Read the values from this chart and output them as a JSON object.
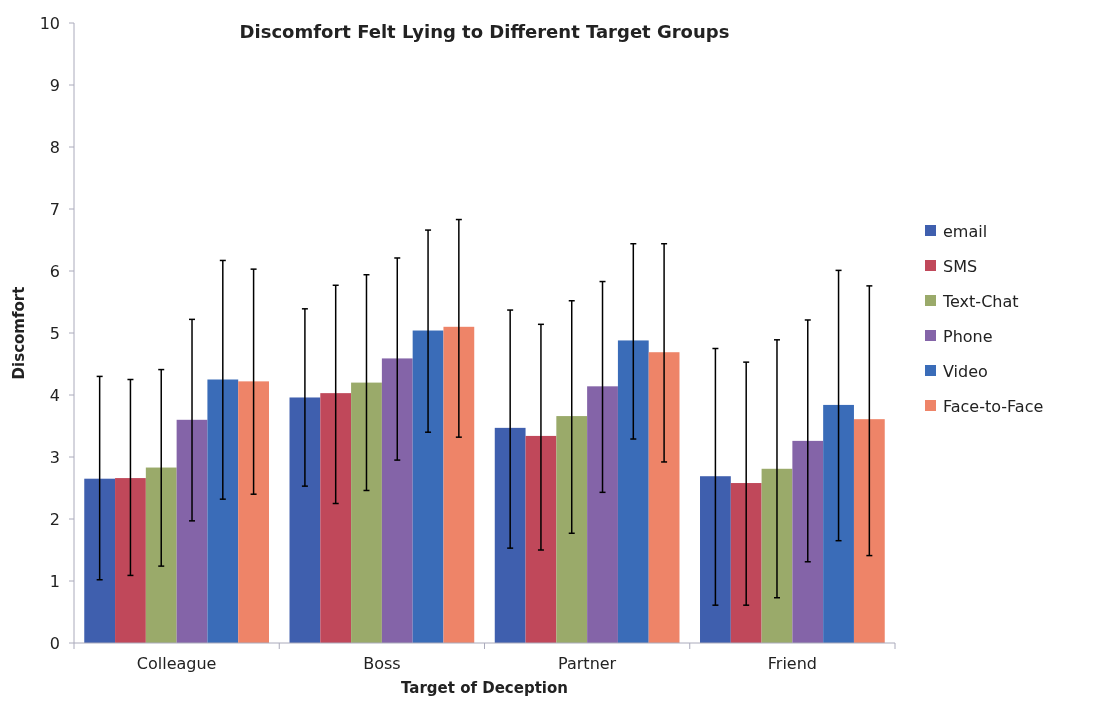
{
  "chart_data": {
    "type": "bar",
    "title": "Discomfort Felt Lying to Different Target Groups",
    "xlabel": "Target of Deception",
    "ylabel": "Discomfort",
    "categories": [
      "Colleague",
      "Boss",
      "Partner",
      "Friend"
    ],
    "series": [
      {
        "name": "email",
        "color": "#3f5fae",
        "values": [
          2.65,
          3.96,
          3.47,
          2.69
        ],
        "errors": [
          [
            1.02,
            4.3
          ],
          [
            2.53,
            5.39
          ],
          [
            1.53,
            5.37
          ],
          [
            0.61,
            4.75
          ]
        ]
      },
      {
        "name": "SMS",
        "color": "#c0485a",
        "values": [
          2.66,
          4.03,
          3.34,
          2.58
        ],
        "errors": [
          [
            1.09,
            4.25
          ],
          [
            2.25,
            5.77
          ],
          [
            1.5,
            5.14
          ],
          [
            0.61,
            4.53
          ]
        ]
      },
      {
        "name": "Text-Chat",
        "color": "#9aaa6a",
        "values": [
          2.83,
          4.2,
          3.66,
          2.81
        ],
        "errors": [
          [
            1.24,
            4.41
          ],
          [
            2.46,
            5.94
          ],
          [
            1.77,
            5.52
          ],
          [
            0.73,
            4.89
          ]
        ]
      },
      {
        "name": "Phone",
        "color": "#8464a8",
        "values": [
          3.6,
          4.59,
          4.14,
          3.26
        ],
        "errors": [
          [
            1.97,
            5.22
          ],
          [
            2.95,
            6.21
          ],
          [
            2.43,
            5.83
          ],
          [
            1.31,
            5.21
          ]
        ]
      },
      {
        "name": "Video",
        "color": "#3a6cb8",
        "values": [
          4.25,
          5.04,
          4.88,
          3.84
        ],
        "errors": [
          [
            2.32,
            6.17
          ],
          [
            3.4,
            6.66
          ],
          [
            3.29,
            6.44
          ],
          [
            1.65,
            6.01
          ]
        ]
      },
      {
        "name": "Face-to-Face",
        "color": "#ee8468",
        "values": [
          4.22,
          5.1,
          4.69,
          3.61
        ],
        "errors": [
          [
            2.4,
            6.03
          ],
          [
            3.32,
            6.83
          ],
          [
            2.92,
            6.44
          ],
          [
            1.41,
            5.76
          ]
        ]
      }
    ],
    "ylim": [
      0,
      10
    ],
    "yticks": [
      0,
      1,
      2,
      3,
      4,
      5,
      6,
      7,
      8,
      9,
      10
    ],
    "legend": "right"
  }
}
